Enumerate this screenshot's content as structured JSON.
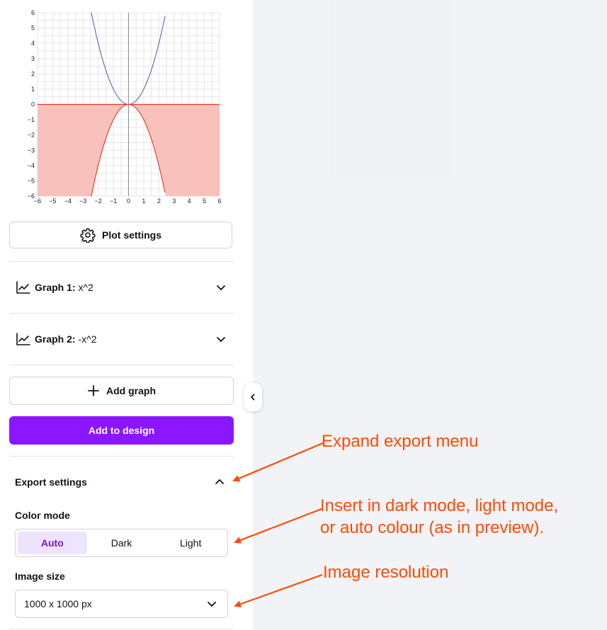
{
  "chart_data": {
    "type": "line",
    "title": "",
    "xlabel": "",
    "ylabel": "",
    "xlim": [
      -6,
      6
    ],
    "ylim": [
      -6,
      6
    ],
    "grid": true,
    "x_ticks": [
      "−6",
      "−5",
      "−4",
      "−3",
      "−2",
      "−1",
      "0",
      "1",
      "2",
      "3",
      "4",
      "5",
      "6"
    ],
    "y_ticks": [
      "6",
      "5",
      "4",
      "3",
      "2",
      "1",
      "0",
      "−1",
      "−2",
      "−3",
      "−4",
      "−5",
      "−6"
    ],
    "series": [
      {
        "expression": "x^2",
        "color": "#4f6ea8",
        "x": [
          -2.45,
          -2,
          -1.5,
          -1,
          -0.5,
          0,
          0.5,
          1,
          1.5,
          2,
          2.45
        ],
        "y": [
          6.0,
          4,
          2.25,
          1,
          0.25,
          0,
          0.25,
          1,
          2.25,
          4,
          6.0
        ],
        "fill": false
      },
      {
        "expression": "-x^2",
        "color": "#e8352a",
        "x": [
          -2.45,
          -2,
          -1.5,
          -1,
          -0.5,
          0,
          0.5,
          1,
          1.5,
          2,
          2.45
        ],
        "y": [
          -6.0,
          -4,
          -2.25,
          -1,
          -0.25,
          0,
          -0.25,
          -1,
          -2.25,
          -4,
          -6.0
        ],
        "fill": true,
        "fill_color": "#f9c1bc",
        "fill_region": "between curve and y=0, outside the curve"
      }
    ]
  },
  "plot_settings_label": "Plot settings",
  "graphs": [
    {
      "prefix": "Graph 1:",
      "expression": "x^2"
    },
    {
      "prefix": "Graph 2:",
      "expression": "-x^2"
    }
  ],
  "add_graph_label": "Add graph",
  "add_to_design_label": "Add to design",
  "export": {
    "title": "Export settings",
    "color_mode_label": "Color mode",
    "color_modes": [
      "Auto",
      "Dark",
      "Light"
    ],
    "color_mode_selected": "Auto",
    "image_size_label": "Image size",
    "image_size_value": "1000 x 1000 px"
  },
  "annotations": {
    "expand": "Expand export menu",
    "mode_line1": "Insert in dark mode, light mode,",
    "mode_line2": "or auto colour (as in preview).",
    "resolution": "Image resolution"
  },
  "colors": {
    "accent": "#8b16ff",
    "annotation": "#ff4a00",
    "selected_bg": "#efe4ff"
  }
}
